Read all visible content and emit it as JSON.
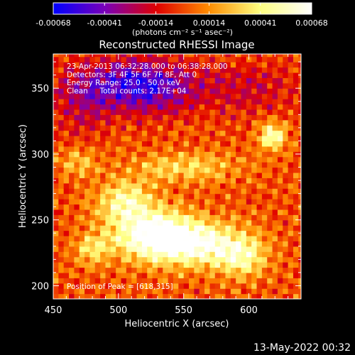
{
  "chart_data": {
    "type": "heatmap",
    "title": "Reconstructed RHESSI Image",
    "xlabel": "Heliocentric X (arcsec)",
    "ylabel": "Heliocentric Y (arcsec)",
    "xlim": [
      450,
      640
    ],
    "ylim": [
      190,
      376
    ],
    "x_ticks": [
      450,
      500,
      550,
      600
    ],
    "y_ticks": [
      200,
      250,
      300,
      350
    ],
    "colorbar": {
      "min": -0.00068,
      "max": 0.00068,
      "tick_values": [
        -0.00068,
        -0.00041,
        -0.00014,
        0.00014,
        0.00041,
        0.00068
      ],
      "tick_labels": [
        "-0.00068",
        "-0.00041",
        "-0.00014",
        "0.00014",
        "0.00041",
        "0.00068"
      ],
      "units": "(photons cm⁻² s⁻¹ asec⁻²)",
      "colors": [
        "#0000ff",
        "#7a00b8",
        "#e00000",
        "#ff8c00",
        "#ffff80",
        "#ffffff"
      ]
    },
    "annotations": [
      "23-Apr-2013 06:32:28.000 to 06:38:28.000",
      "Detectors: 3F 4F 5F 6F 7F 8F, Att 0",
      "Energy Range: 25.0 - 50.0 keV",
      "Clean     Total counts: 2.17E+04"
    ],
    "peak_label": "Position of Peak = [618,315]",
    "peak": [
      618,
      315
    ],
    "sources": [
      {
        "x": 525,
        "y": 240,
        "amp": 0.00068,
        "sx": 22,
        "sy": 13
      },
      {
        "x": 560,
        "y": 232,
        "amp": 0.0006,
        "sx": 25,
        "sy": 12
      },
      {
        "x": 505,
        "y": 265,
        "amp": 0.00045,
        "sx": 15,
        "sy": 10
      },
      {
        "x": 595,
        "y": 222,
        "amp": 0.0004,
        "sx": 13,
        "sy": 11
      },
      {
        "x": 618,
        "y": 314,
        "amp": 0.00055,
        "sx": 7,
        "sy": 7
      },
      {
        "x": 480,
        "y": 228,
        "amp": 0.0003,
        "sx": 9,
        "sy": 9
      },
      {
        "x": 550,
        "y": 290,
        "amp": 0.0003,
        "sx": 30,
        "sy": 8
      },
      {
        "x": 470,
        "y": 295,
        "amp": 0.00025,
        "sx": 10,
        "sy": 8
      },
      {
        "x": 515,
        "y": 352,
        "amp": -0.0006,
        "sx": 30,
        "sy": 14
      },
      {
        "x": 600,
        "y": 350,
        "amp": -0.0002,
        "sx": 30,
        "sy": 14
      },
      {
        "x": 470,
        "y": 340,
        "amp": -0.0002,
        "sx": 15,
        "sy": 20
      }
    ],
    "baseline": 2e-05
  },
  "footer": {
    "timestamp": "13-May-2022 00:32"
  }
}
